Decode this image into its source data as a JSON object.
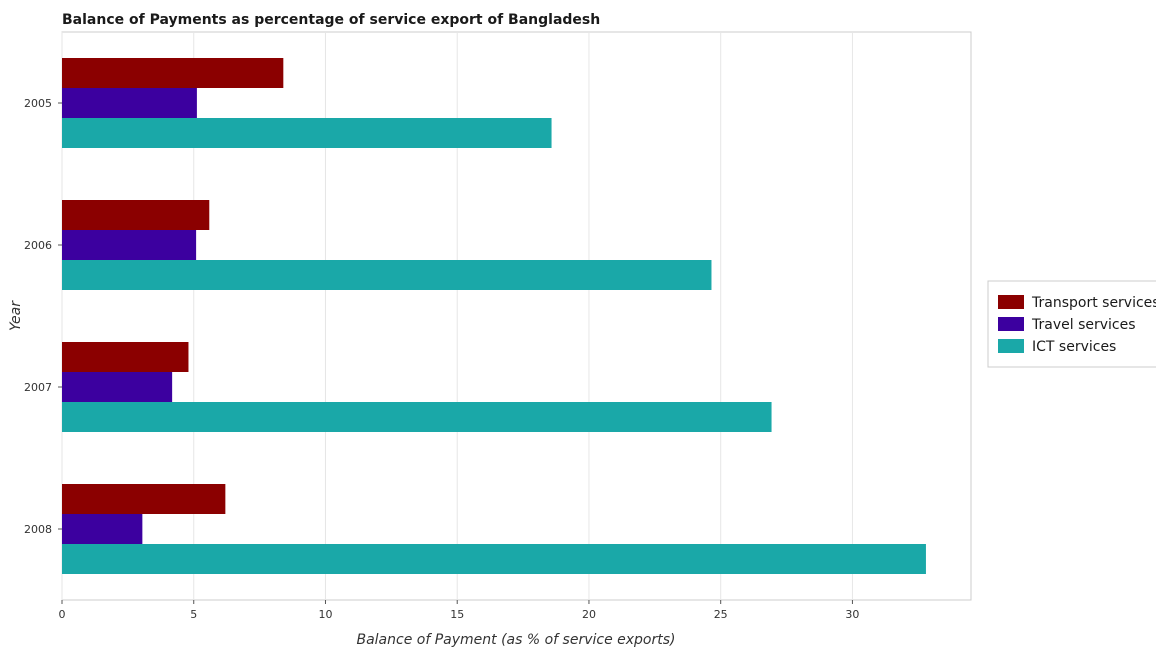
{
  "chart_data": {
    "type": "bar",
    "orientation": "horizontal",
    "title": "Balance of Payments as percentage of service export of Bangladesh",
    "xlabel": "Balance of Payment (as % of service exports)",
    "ylabel": "Year",
    "categories": [
      "2005",
      "2006",
      "2007",
      "2008"
    ],
    "xlim": [
      0,
      34.5
    ],
    "xticks": [
      0,
      5,
      10,
      15,
      20,
      25,
      30
    ],
    "grid": true,
    "legend_position": "right",
    "series": [
      {
        "name": "Transport services",
        "color": "#8b0000",
        "values": [
          8.4,
          5.59,
          4.8,
          6.2
        ]
      },
      {
        "name": "Travel services",
        "color": "#3c009f",
        "values": [
          5.12,
          5.09,
          4.18,
          3.05
        ]
      },
      {
        "name": "ICT services",
        "color": "#1aa8a8",
        "values": [
          18.58,
          24.65,
          26.93,
          32.79
        ]
      }
    ]
  }
}
